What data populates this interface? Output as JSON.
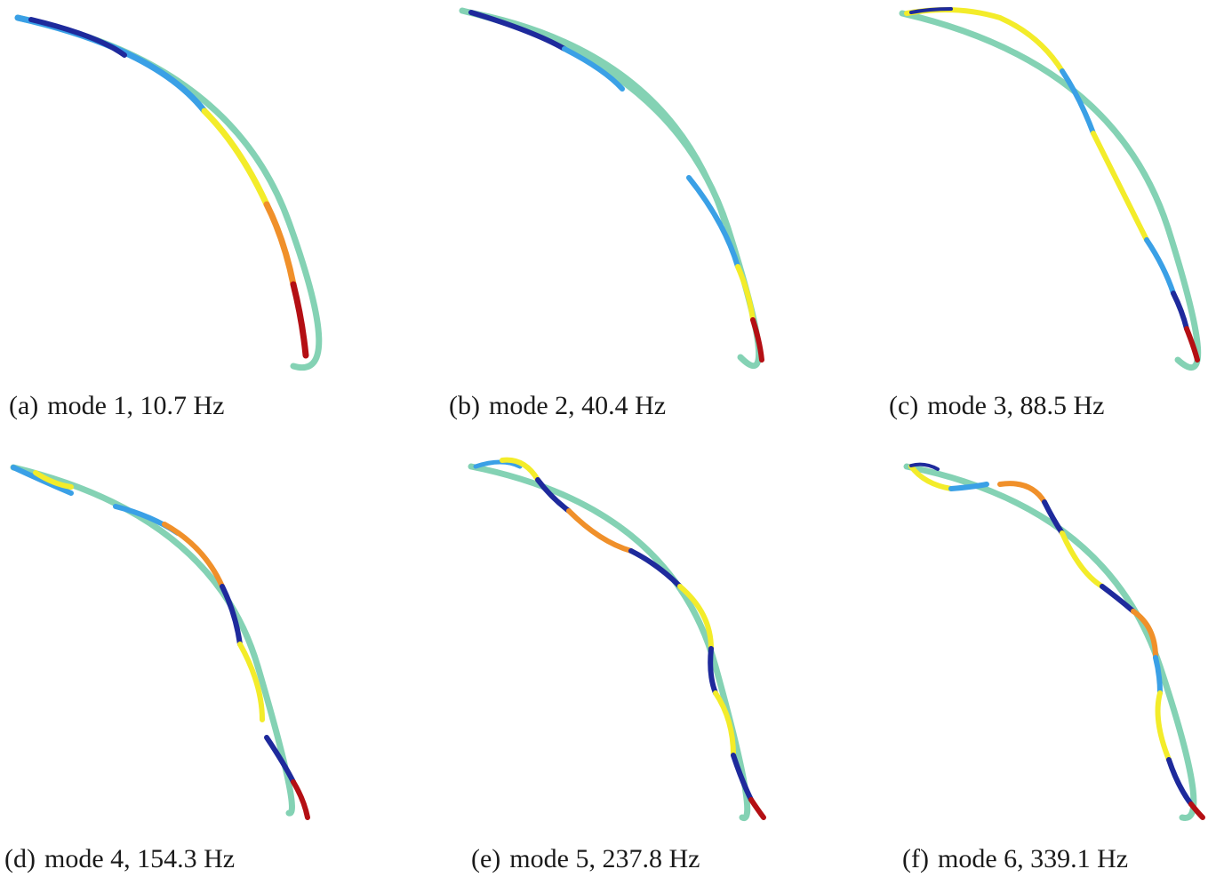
{
  "figure": {
    "panels": [
      {
        "id": "a",
        "tag": "(a)",
        "label": "mode 1, 10.7 Hz"
      },
      {
        "id": "b",
        "tag": "(b)",
        "label": "mode 2, 40.4 Hz"
      },
      {
        "id": "c",
        "tag": "(c)",
        "label": "mode 3, 88.5 Hz"
      },
      {
        "id": "d",
        "tag": "(d)",
        "label": "mode 4, 154.3 Hz"
      },
      {
        "id": "e",
        "tag": "(e)",
        "label": "mode 5, 237.8 Hz"
      },
      {
        "id": "f",
        "tag": "(f)",
        "label": "mode 6, 339.1 Hz"
      }
    ],
    "colors": {
      "undeformed": "#84d2b4",
      "colormap": [
        "#1e2a9c",
        "#3aa0e6",
        "#84d2b4",
        "#f3ec2a",
        "#f0902a",
        "#b40f14"
      ]
    }
  }
}
